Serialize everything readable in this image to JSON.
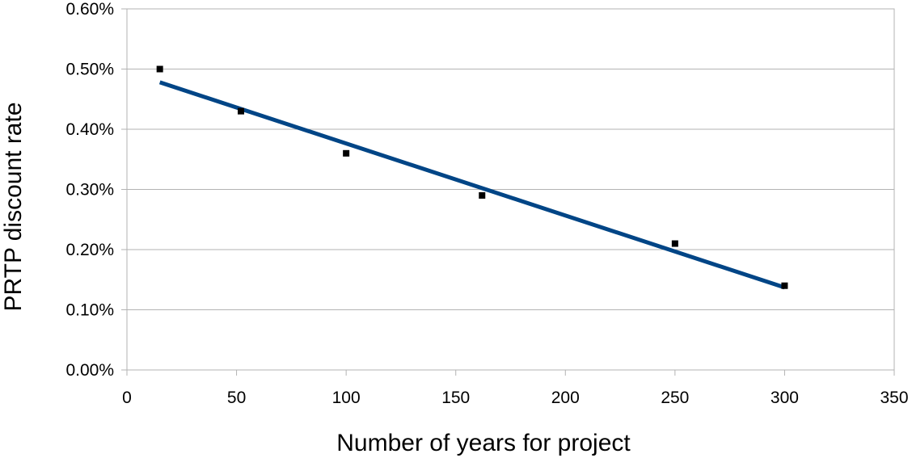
{
  "chart_data": {
    "type": "scatter",
    "title": "",
    "xlabel": "Number of years for project",
    "ylabel": "PRTP discount rate",
    "xlim": [
      0,
      350
    ],
    "ylim": [
      0,
      0.006
    ],
    "x_ticks": [
      0,
      50,
      100,
      150,
      200,
      250,
      300,
      350
    ],
    "x_tick_labels": [
      "0",
      "50",
      "100",
      "150",
      "200",
      "250",
      "300",
      "350"
    ],
    "y_ticks": [
      0,
      0.001,
      0.002,
      0.003,
      0.004,
      0.005,
      0.006
    ],
    "y_tick_labels": [
      "0.00%",
      "0.10%",
      "0.20%",
      "0.30%",
      "0.40%",
      "0.50%",
      "0.60%"
    ],
    "grid": true,
    "legend": "none",
    "series": [
      {
        "type": "scatter",
        "x": [
          15,
          52,
          100,
          162,
          250,
          300
        ],
        "y": [
          0.005,
          0.0043,
          0.0036,
          0.0029,
          0.0021,
          0.0014
        ],
        "marker": "square",
        "color": "#000000"
      }
    ],
    "trendline": {
      "type": "linear",
      "x": [
        15,
        300
      ],
      "y": [
        0.00478,
        0.00137
      ],
      "color": "#004586"
    }
  }
}
